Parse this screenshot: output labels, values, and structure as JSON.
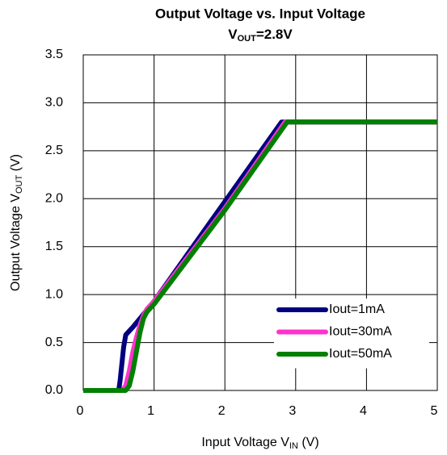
{
  "chart_data": {
    "type": "line",
    "title": "Output Voltage vs. Input Voltage",
    "subtitle": [
      "V",
      "OUT",
      "=2.8V"
    ],
    "x_label": [
      "Input Voltage V",
      "IN",
      " (V)"
    ],
    "y_label": [
      "Output Voltage V",
      "OUT",
      " (V)"
    ],
    "xlim": [
      0,
      5
    ],
    "xticks": [
      0,
      1,
      2,
      3,
      4,
      5
    ],
    "ylim": [
      0,
      3.5
    ],
    "yticks": [
      {
        "value": 0,
        "label": "0.0"
      },
      0.5,
      {
        "value": 1,
        "label": "1.0"
      },
      1.5,
      {
        "value": 2,
        "label": "2.0"
      },
      2.5,
      {
        "value": 3,
        "label": "3.0"
      },
      3.5
    ],
    "grid": true,
    "legend": "lower right",
    "series": [
      {
        "name": "Iout=1mA",
        "color": "#000080",
        "x": [
          0,
          0.5,
          0.52,
          0.57,
          0.6,
          0.7,
          0.8,
          0.9,
          1.0,
          2.0,
          2.8,
          2.85,
          5
        ],
        "values": [
          0,
          0,
          0.1,
          0.45,
          0.58,
          0.66,
          0.75,
          0.84,
          0.93,
          1.97,
          2.8,
          2.8,
          2.8
        ]
      },
      {
        "name": "Iout=30mA",
        "color": "#ff33cc",
        "x": [
          0,
          0.55,
          0.6,
          0.65,
          0.7,
          0.75,
          0.8,
          0.85,
          0.9,
          1.0,
          2.0,
          2.85,
          5
        ],
        "values": [
          0,
          0,
          0.05,
          0.2,
          0.4,
          0.55,
          0.68,
          0.78,
          0.85,
          0.93,
          1.9,
          2.8,
          2.8
        ]
      },
      {
        "name": "Iout=50mA",
        "color": "#008000",
        "x": [
          0,
          0.6,
          0.65,
          0.7,
          0.75,
          0.8,
          0.85,
          0.9,
          1.0,
          2.0,
          2.88,
          5
        ],
        "values": [
          0,
          0,
          0.05,
          0.2,
          0.4,
          0.6,
          0.75,
          0.82,
          0.9,
          1.88,
          2.8,
          2.8
        ]
      }
    ]
  }
}
